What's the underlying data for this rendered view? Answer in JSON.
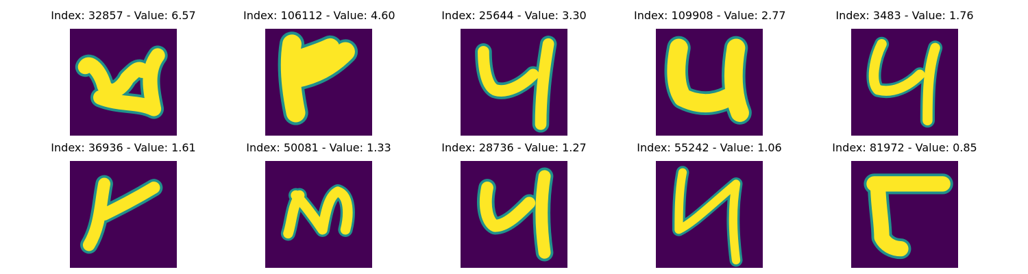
{
  "colors": {
    "background": "#440154",
    "stroke_mid": "#21918c",
    "stroke_core": "#fde725"
  },
  "panels": [
    {
      "index": "32857",
      "value": "6.57",
      "title": "Index: 32857 - Value: 6.57"
    },
    {
      "index": "106112",
      "value": "4.60",
      "title": "Index: 106112 - Value: 4.60"
    },
    {
      "index": "25644",
      "value": "3.30",
      "title": "Index: 25644 - Value: 3.30"
    },
    {
      "index": "109908",
      "value": "2.77",
      "title": "Index: 109908 - Value: 2.77"
    },
    {
      "index": "3483",
      "value": "1.76",
      "title": "Index: 3483 - Value: 1.76"
    },
    {
      "index": "36936",
      "value": "1.61",
      "title": "Index: 36936 - Value: 1.61"
    },
    {
      "index": "50081",
      "value": "1.33",
      "title": "Index: 50081 - Value: 1.33"
    },
    {
      "index": "28736",
      "value": "1.27",
      "title": "Index: 28736 - Value: 1.27"
    },
    {
      "index": "55242",
      "value": "1.06",
      "title": "Index: 55242 - Value: 1.06"
    },
    {
      "index": "81972",
      "value": "0.85",
      "title": "Index: 81972 - Value: 0.85"
    }
  ]
}
